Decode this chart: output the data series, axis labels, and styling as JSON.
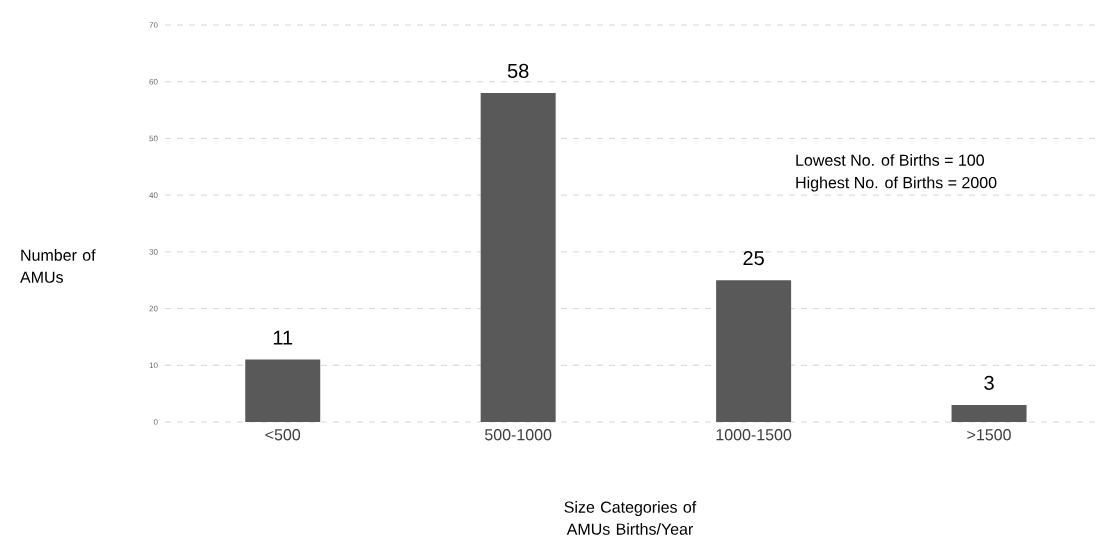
{
  "chart_data": {
    "type": "bar",
    "categories": [
      "<500",
      "500-1000",
      "1000-1500",
      ">1500"
    ],
    "values": [
      11,
      58,
      25,
      3
    ],
    "color": "#595959",
    "data_labels": true,
    "ylim": [
      0,
      70
    ],
    "yticks": [
      0,
      10,
      20,
      30,
      40,
      50,
      60,
      70
    ],
    "grid": "y",
    "xlabel": "Size Categories of AMUs Births/Year",
    "ylabel": "Number of AMUs",
    "annotations": [
      "Lowest No. of Births =  100",
      "Highest No. of Births = 2000"
    ]
  }
}
